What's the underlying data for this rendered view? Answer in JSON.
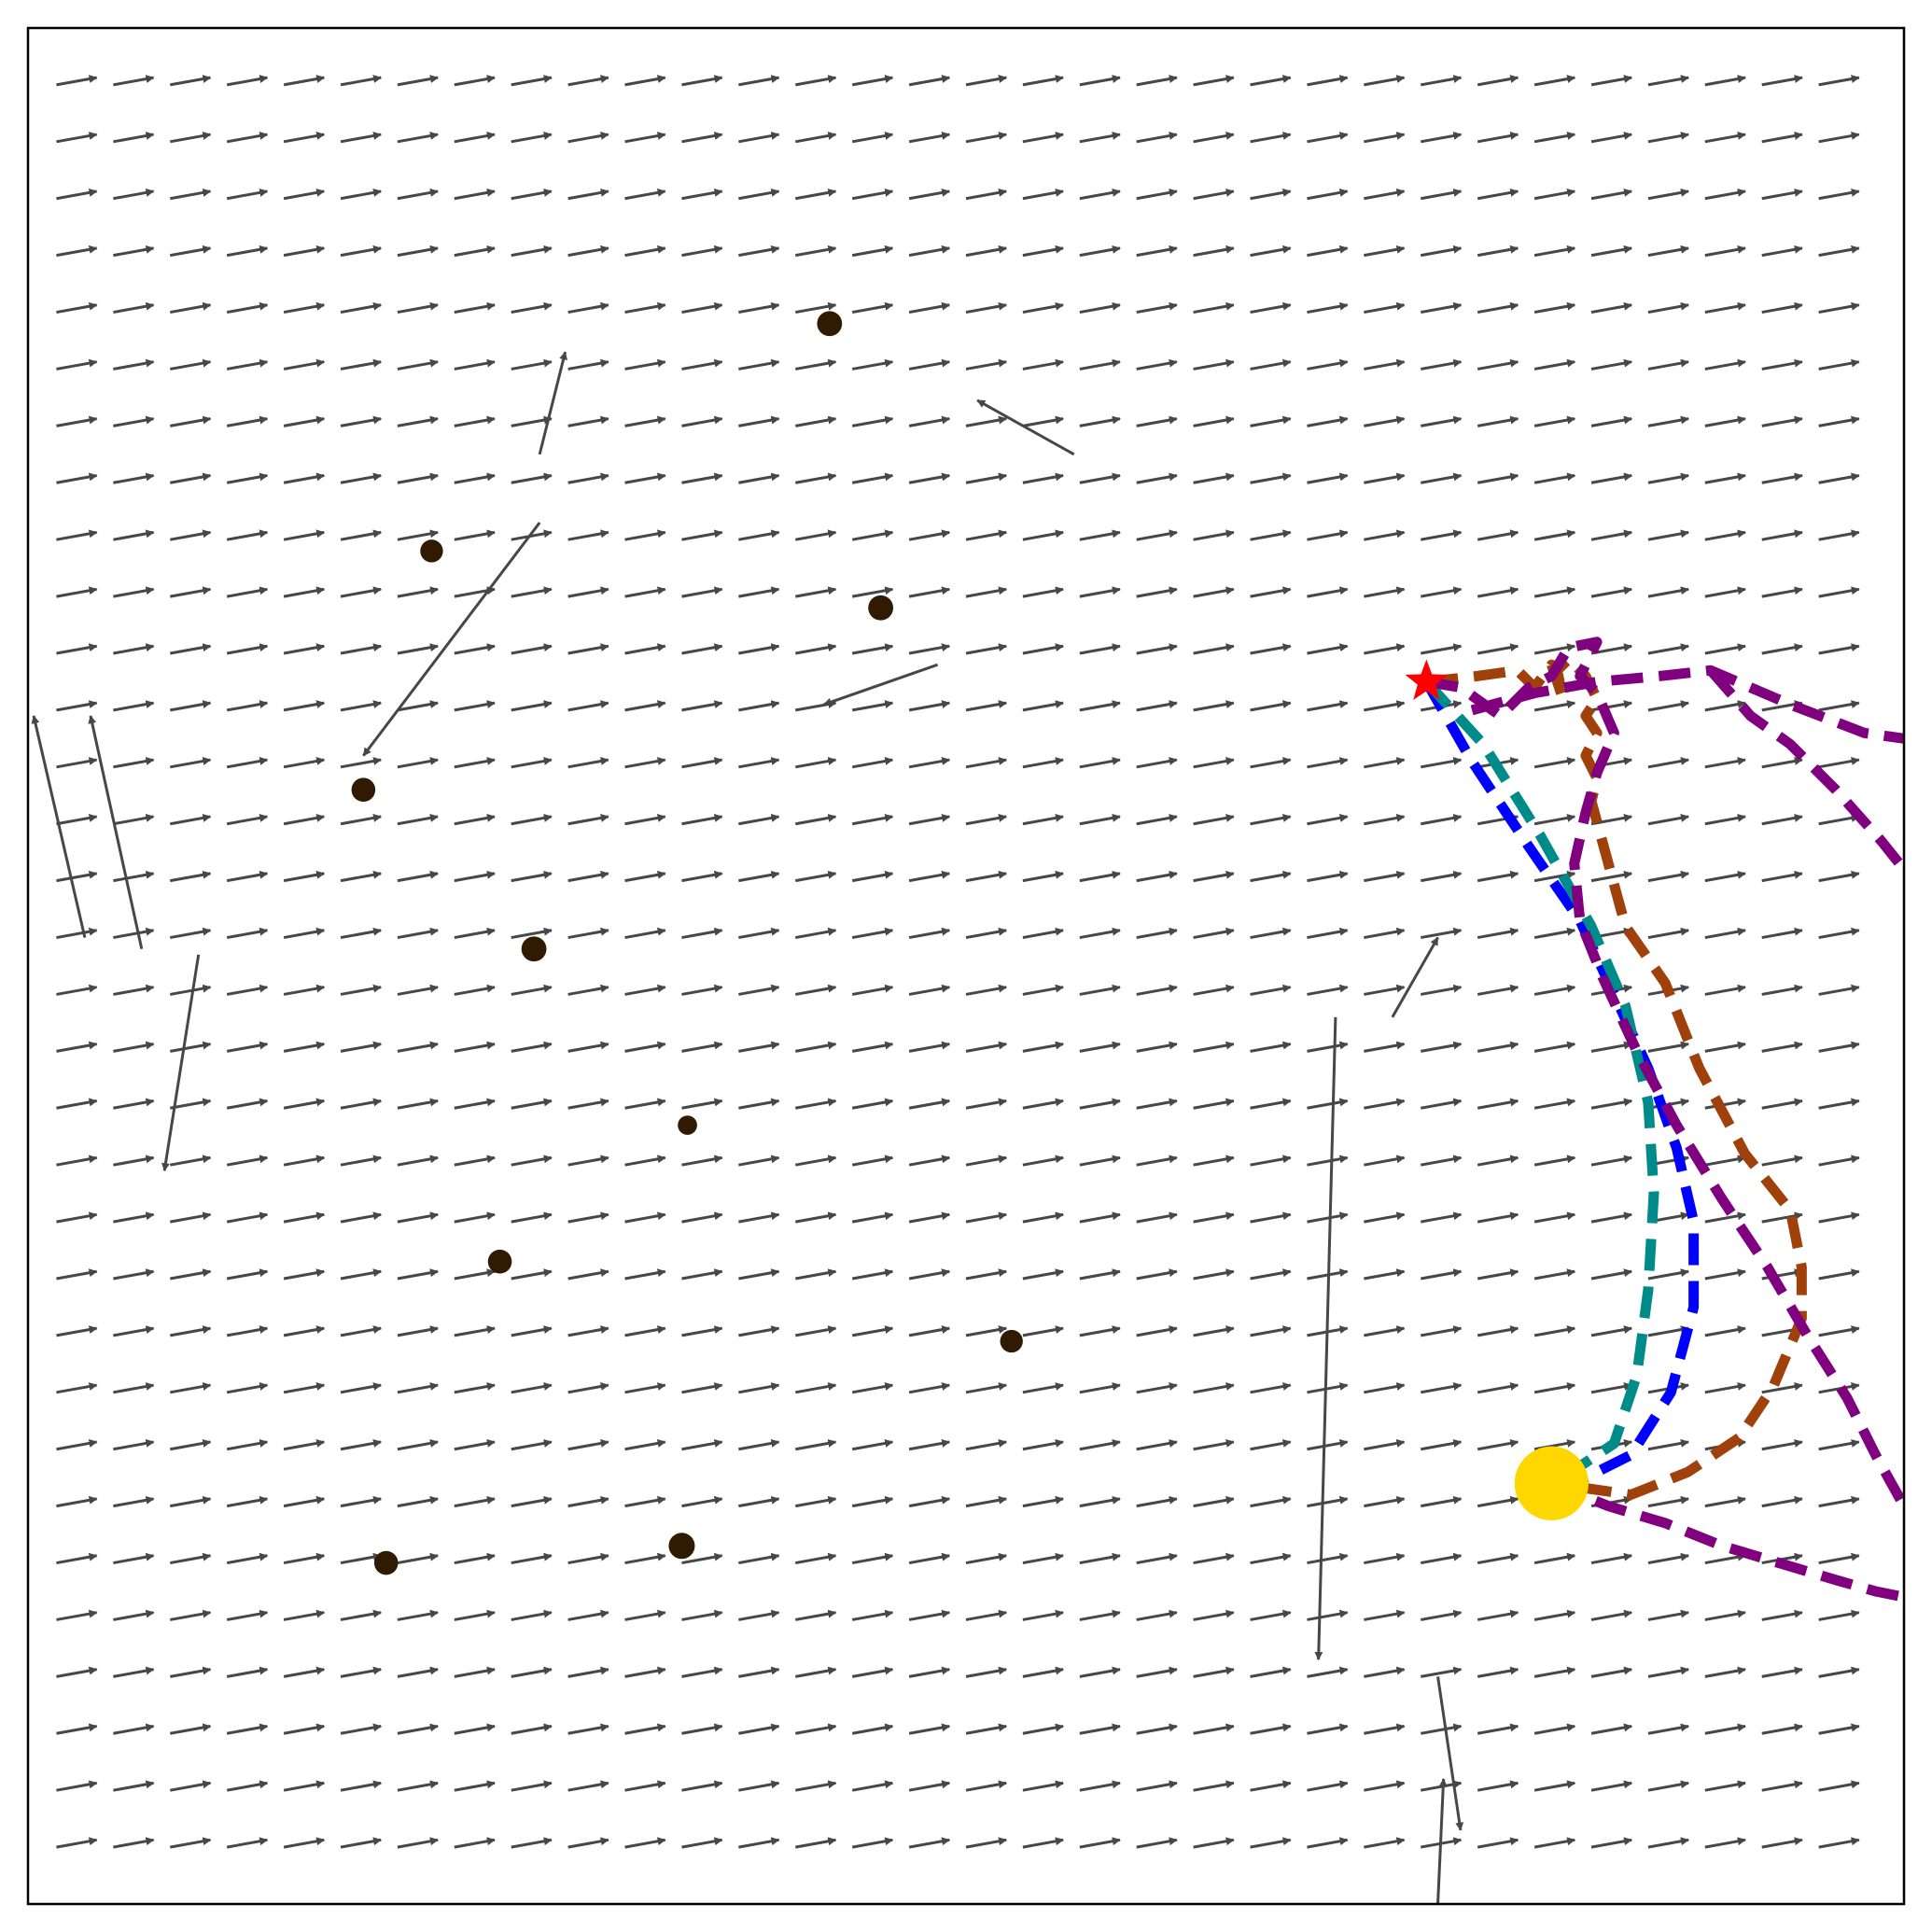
{
  "chart_data": {
    "type": "quiver",
    "title": "",
    "xlabel": "",
    "ylabel": "",
    "xlim": [
      0,
      33
    ],
    "ylim": [
      0,
      33
    ],
    "grid": false,
    "ticks": false,
    "colors": {
      "arrow": "#474747",
      "obstacle": "#301a02",
      "start": "#ff0000",
      "goal": "#ffd700",
      "frame": "#000000"
    },
    "field_base": [
      1.0,
      0.18
    ],
    "field_arrows": [
      {
        "x": 9.0,
        "y": 25.5,
        "u": 0.45,
        "v": 1.8
      },
      {
        "x": 9.0,
        "y": 24.3,
        "u": -3.1,
        "v": -4.1
      },
      {
        "x": 1.0,
        "y": 17.0,
        "u": -0.9,
        "v": 3.9
      },
      {
        "x": 2.0,
        "y": 16.8,
        "u": -0.9,
        "v": 4.1
      },
      {
        "x": 3.0,
        "y": 16.7,
        "u": -0.6,
        "v": -3.8
      },
      {
        "x": 18.4,
        "y": 25.5,
        "u": -1.7,
        "v": 0.95
      },
      {
        "x": 23.0,
        "y": 15.6,
        "u": -0.3,
        "v": -11.3
      },
      {
        "x": 24.8,
        "y": 4.0,
        "u": 0.4,
        "v": -2.7
      },
      {
        "x": 24.8,
        "y": 0.0,
        "u": 0.1,
        "v": 2.2
      },
      {
        "x": 24.0,
        "y": 15.6,
        "u": 0.8,
        "v": 1.4
      },
      {
        "x": 16.0,
        "y": 21.8,
        "u": -2.0,
        "v": -0.7
      }
    ],
    "obstacles": [
      {
        "x": 14.1,
        "y": 27.8,
        "r": 0.22
      },
      {
        "x": 7.1,
        "y": 23.8,
        "r": 0.2
      },
      {
        "x": 15.0,
        "y": 22.8,
        "r": 0.22
      },
      {
        "x": 5.9,
        "y": 19.6,
        "r": 0.21
      },
      {
        "x": 8.9,
        "y": 16.8,
        "r": 0.22
      },
      {
        "x": 11.6,
        "y": 13.7,
        "r": 0.17
      },
      {
        "x": 8.3,
        "y": 11.3,
        "r": 0.21
      },
      {
        "x": 17.3,
        "y": 9.9,
        "r": 0.2
      },
      {
        "x": 6.3,
        "y": 6.0,
        "r": 0.21
      },
      {
        "x": 11.5,
        "y": 6.3,
        "r": 0.23
      }
    ],
    "start": {
      "x": 24.6,
      "y": 21.5
    },
    "goal": {
      "x": 26.8,
      "y": 7.4,
      "r": 0.65
    },
    "series": [
      {
        "color": "#0000ff",
        "x": [
          24.6,
          25.4,
          26.4,
          27.3,
          27.9,
          28.5,
          29.0,
          29.3,
          29.3,
          28.9,
          28.2,
          27.4,
          26.8
        ],
        "y": [
          21.5,
          20.1,
          18.6,
          17.3,
          16.0,
          14.7,
          13.3,
          12.0,
          10.5,
          9.0,
          7.9,
          7.5,
          7.4
        ]
      },
      {
        "color": "#008b8b",
        "x": [
          24.6,
          25.6,
          26.6,
          27.5,
          28.1,
          28.5,
          28.6,
          28.5,
          28.3,
          27.9,
          27.3,
          26.8
        ],
        "y": [
          21.5,
          20.4,
          18.8,
          17.2,
          15.8,
          14.1,
          12.5,
          10.8,
          9.3,
          8.1,
          7.7,
          7.4
        ]
      },
      {
        "color": "#a0400a",
        "x": [
          24.6,
          25.5,
          26.2,
          26.5,
          26.8,
          27.0,
          26.9,
          27.1,
          27.4,
          27.6,
          27.4,
          27.6,
          27.4,
          27.6,
          27.5,
          27.8,
          28.1,
          28.8,
          29.4,
          30.2,
          31.0,
          31.2,
          31.2,
          30.7,
          30.1,
          29.2,
          28.2,
          26.8
        ],
        "y": [
          21.5,
          21.6,
          21.7,
          21.4,
          21.8,
          21.2,
          21.7,
          21.9,
          21.6,
          21.2,
          20.9,
          20.6,
          20.2,
          19.8,
          19.4,
          18.3,
          17.2,
          16.2,
          14.7,
          13.2,
          12.2,
          11.2,
          10.3,
          9.1,
          8.2,
          7.6,
          7.2,
          7.4
        ]
      },
      {
        "color": "#800080",
        "x": [
          24.6,
          25.2,
          25.9,
          26.4,
          26.8,
          27.1,
          27.6,
          27.3,
          27.6,
          27.9,
          27.6,
          27.4,
          27.2,
          27.3,
          27.7,
          28.3,
          29.0,
          29.8,
          30.6,
          31.3,
          32.0,
          32.5,
          33.0
        ],
        "y": [
          21.5,
          21.4,
          20.9,
          21.4,
          21.6,
          22.1,
          22.2,
          21.6,
          21.3,
          20.6,
          19.9,
          19.2,
          18.3,
          17.3,
          16.3,
          15.0,
          13.7,
          12.4,
          11.2,
          10.0,
          8.9,
          7.9,
          7.0
        ]
      },
      {
        "color": "#800080",
        "x": [
          25.4,
          26.5,
          27.6,
          28.7,
          29.6,
          31.0,
          32.3,
          33.0
        ],
        "y": [
          21.0,
          21.3,
          21.5,
          21.6,
          21.7,
          21.1,
          20.6,
          20.5
        ]
      },
      {
        "color": "#800080",
        "x": [
          29.6,
          30.3,
          31.0,
          31.8,
          32.6,
          33.0
        ],
        "y": [
          21.7,
          20.9,
          20.4,
          19.6,
          18.7,
          18.2
        ]
      },
      {
        "color": "#800080",
        "x": [
          26.8,
          27.8,
          28.8,
          29.8,
          30.8,
          31.8,
          32.5,
          33.0
        ],
        "y": [
          7.4,
          7.0,
          6.7,
          6.3,
          6.0,
          5.7,
          5.5,
          5.4
        ]
      }
    ]
  }
}
